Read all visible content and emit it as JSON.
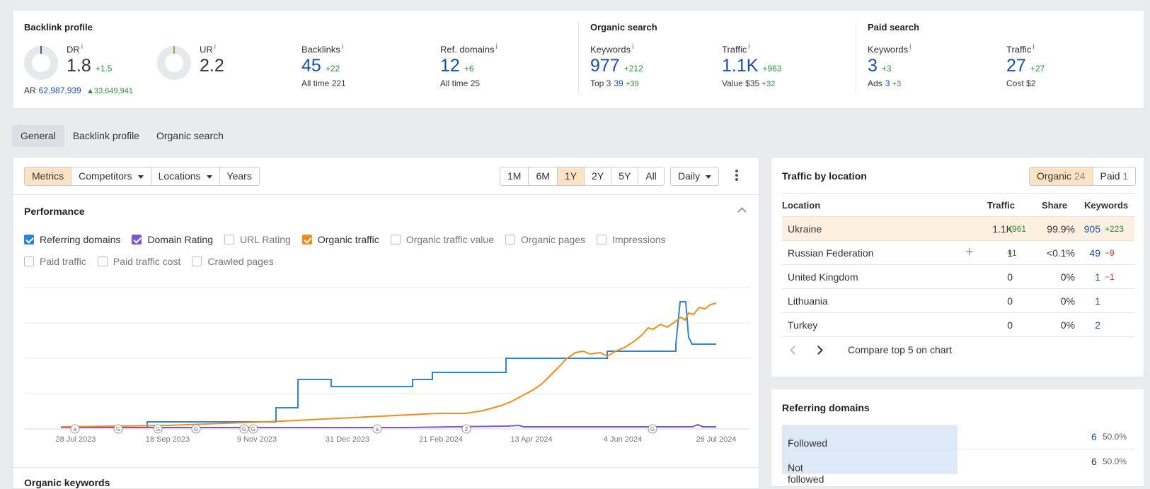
{
  "backlink": {
    "title": "Backlink profile",
    "dr": {
      "label": "DR",
      "info": "i",
      "value": "1.8",
      "delta": "+1.5"
    },
    "ar": {
      "label": "AR",
      "value": "62,987,939",
      "delta": "▲33,649,941"
    },
    "ur": {
      "label": "UR",
      "info": "i",
      "value": "2.2"
    },
    "backlinks": {
      "label": "Backlinks",
      "info": "i",
      "value": "45",
      "delta": "+22",
      "sub_label": "All time",
      "sub_value": "221"
    },
    "refdomains": {
      "label": "Ref. domains",
      "info": "i",
      "value": "12",
      "delta": "+6",
      "sub_label": "All time",
      "sub_value": "25"
    }
  },
  "organic": {
    "title": "Organic search",
    "keywords": {
      "label": "Keywords",
      "info": "i",
      "value": "977",
      "delta": "+212",
      "sub_label": "Top 3",
      "sub_value": "39",
      "sub_delta": "+39"
    },
    "traffic": {
      "label": "Traffic",
      "info": "i",
      "value": "1.1K",
      "delta": "+963",
      "sub_label": "Value",
      "sub_value": "$35",
      "sub_delta": "+32"
    }
  },
  "paid": {
    "title": "Paid search",
    "keywords": {
      "label": "Keywords",
      "info": "i",
      "value": "3",
      "delta": "+3",
      "sub_label": "Ads",
      "sub_value": "3",
      "sub_delta": "+3"
    },
    "traffic": {
      "label": "Traffic",
      "info": "i",
      "value": "27",
      "delta": "+27",
      "sub_label": "Cost",
      "sub_value": "$2"
    }
  },
  "tabs": [
    "General",
    "Backlink profile",
    "Organic search"
  ],
  "toolbar": {
    "metrics": "Metrics",
    "competitors": "Competitors",
    "locations": "Locations",
    "years": "Years",
    "ranges": [
      "1M",
      "6M",
      "1Y",
      "2Y",
      "5Y",
      "All"
    ],
    "active_range": "1Y",
    "interval": "Daily"
  },
  "performance": {
    "title": "Performance",
    "checkboxes": [
      {
        "label": "Referring domains",
        "checked": true,
        "color": "#2f84d6"
      },
      {
        "label": "Domain Rating",
        "checked": true,
        "color": "#7b57c8"
      },
      {
        "label": "URL Rating",
        "checked": false
      },
      {
        "label": "Organic traffic",
        "checked": true,
        "color": "#f08c1d"
      },
      {
        "label": "Organic traffic value",
        "checked": false
      },
      {
        "label": "Organic pages",
        "checked": false
      },
      {
        "label": "Impressions",
        "checked": false
      },
      {
        "label": "Paid traffic",
        "checked": false
      },
      {
        "label": "Paid traffic cost",
        "checked": false
      },
      {
        "label": "Crawled pages",
        "checked": false
      }
    ],
    "x_labels": [
      "28 Jul 2023",
      "18 Sep 2023",
      "9 Nov 2023",
      "31 Dec 2023",
      "21 Feb 2024",
      "13 Apr 2024",
      "4 Jun 2024",
      "26 Jul 2024"
    ],
    "markers": [
      "a",
      "G",
      "G",
      "G",
      "G",
      "G",
      "a",
      "2",
      "G"
    ],
    "next_section": "Organic keywords"
  },
  "location": {
    "title": "Traffic by location",
    "organic_label": "Organic",
    "organic_count": "24",
    "paid_label": "Paid",
    "paid_count": "1",
    "headers": {
      "location": "Location",
      "traffic": "Traffic",
      "share": "Share",
      "keywords": "Keywords"
    },
    "rows": [
      {
        "name": "Ukraine",
        "traffic": "1.1K",
        "tdelta": "+961",
        "share": "99.9%",
        "kw": "905",
        "kdelta": "+223"
      },
      {
        "name": "Russian Federation",
        "traffic": "1",
        "tdelta": "+1",
        "share": "<0.1%",
        "kw": "49",
        "kdelta": "−9"
      },
      {
        "name": "United Kingdom",
        "traffic": "0",
        "tdelta": "",
        "share": "0%",
        "kw": "1",
        "kdelta": "−1"
      },
      {
        "name": "Lithuania",
        "traffic": "0",
        "tdelta": "",
        "share": "0%",
        "kw": "1",
        "kdelta": ""
      },
      {
        "name": "Turkey",
        "traffic": "0",
        "tdelta": "",
        "share": "0%",
        "kw": "2",
        "kdelta": ""
      }
    ],
    "compare": "Compare top 5 on chart"
  },
  "referring": {
    "title": "Referring domains",
    "rows": [
      {
        "label": "Followed",
        "info": "i",
        "value": "6",
        "pct": "50.0%"
      },
      {
        "label": "Not followed",
        "info": "i",
        "value": "6",
        "pct": "50.0%"
      }
    ]
  },
  "colors": {
    "accent": "#fde3c3",
    "link": "#1a4fa8",
    "positive": "#2e8b3d",
    "negative": "#d33"
  }
}
